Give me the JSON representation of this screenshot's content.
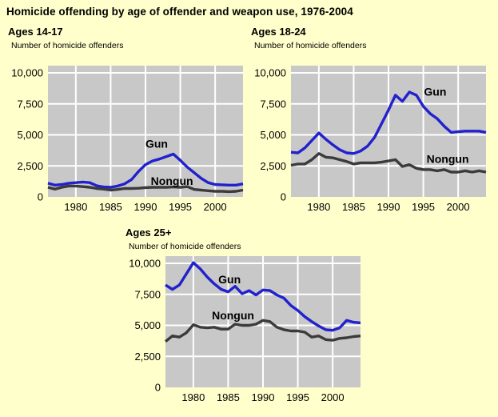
{
  "title": "Homicide offending by age of offender and weapon use, 1976-2004",
  "colors": {
    "background": "#FFFFCC",
    "plot_bg": "#C8C8C8",
    "grid": "#FFFFFF",
    "gun": "#2121CE",
    "nongun": "#3B3B3B",
    "text": "#000000"
  },
  "chart_data": [
    {
      "type": "line",
      "title": "Ages 14-17",
      "ylabel": "Number of homicide offenders",
      "xlim": [
        1976,
        2004
      ],
      "ylim": [
        0,
        10500
      ],
      "grid": true,
      "legend": "inline-labels",
      "xticks": [
        1980,
        1985,
        1990,
        1995,
        2000
      ],
      "yticks": [
        0,
        2500,
        5000,
        7500,
        10000
      ],
      "ytick_labels": [
        "0",
        "2,500",
        "5,000",
        "7,500",
        "10,000"
      ],
      "x": [
        1976,
        1977,
        1978,
        1979,
        1980,
        1981,
        1982,
        1983,
        1984,
        1985,
        1986,
        1987,
        1988,
        1989,
        1990,
        1991,
        1992,
        1993,
        1994,
        1995,
        1996,
        1997,
        1998,
        1999,
        2000,
        2001,
        2002,
        2003,
        2004
      ],
      "series": [
        {
          "name": "Gun",
          "color_key": "gun",
          "values": [
            1100,
            950,
            1000,
            1100,
            1150,
            1200,
            1150,
            900,
            800,
            775,
            875,
            1050,
            1400,
            2050,
            2600,
            2900,
            3050,
            3250,
            3450,
            2950,
            2400,
            1950,
            1500,
            1150,
            1000,
            975,
            950,
            950,
            1050
          ],
          "label_at": {
            "x": 1991.6,
            "y": 4300
          }
        },
        {
          "name": "Nongun",
          "color_key": "nongun",
          "values": [
            775,
            625,
            775,
            875,
            875,
            825,
            775,
            675,
            625,
            550,
            600,
            675,
            675,
            700,
            750,
            775,
            775,
            775,
            800,
            775,
            825,
            600,
            550,
            500,
            450,
            450,
            425,
            450,
            550
          ],
          "label_at": {
            "x": 1993.8,
            "y": 1300
          }
        }
      ]
    },
    {
      "type": "line",
      "title": "Ages 18-24",
      "ylabel": "Number of homicide offenders",
      "xlim": [
        1976,
        2004
      ],
      "ylim": [
        0,
        10500
      ],
      "grid": true,
      "legend": "inline-labels",
      "xticks": [
        1980,
        1985,
        1990,
        1995,
        2000
      ],
      "yticks": [
        0,
        2500,
        5000,
        7500,
        10000
      ],
      "ytick_labels": [
        "0",
        "2,500",
        "5,000",
        "7,500",
        "10,000"
      ],
      "x": [
        1976,
        1977,
        1978,
        1979,
        1980,
        1981,
        1982,
        1983,
        1984,
        1985,
        1986,
        1987,
        1988,
        1989,
        1990,
        1991,
        1992,
        1993,
        1994,
        1995,
        1996,
        1997,
        1998,
        1999,
        2000,
        2001,
        2002,
        2003,
        2004
      ],
      "series": [
        {
          "name": "Gun",
          "color_key": "gun",
          "values": [
            3600,
            3550,
            3950,
            4550,
            5150,
            4650,
            4200,
            3800,
            3550,
            3500,
            3700,
            4100,
            4800,
            5900,
            7000,
            8200,
            7700,
            8450,
            8200,
            7300,
            6700,
            6300,
            5700,
            5200,
            5250,
            5300,
            5300,
            5300,
            5200
          ],
          "label_at": {
            "x": 1996.7,
            "y": 8500
          }
        },
        {
          "name": "Nongun",
          "color_key": "nongun",
          "values": [
            2550,
            2650,
            2650,
            3000,
            3500,
            3200,
            3150,
            3000,
            2850,
            2650,
            2750,
            2750,
            2750,
            2800,
            2900,
            3000,
            2450,
            2600,
            2300,
            2200,
            2200,
            2100,
            2200,
            2000,
            2000,
            2100,
            2000,
            2100,
            2000
          ],
          "label_at": {
            "x": 1998.5,
            "y": 3050
          }
        }
      ]
    },
    {
      "type": "line",
      "title": "Ages 25+",
      "ylabel": "Number of homicide offenders",
      "xlim": [
        1976,
        2004
      ],
      "ylim": [
        0,
        10500
      ],
      "grid": true,
      "legend": "inline-labels",
      "xticks": [
        1980,
        1985,
        1990,
        1995,
        2000
      ],
      "yticks": [
        0,
        2500,
        5000,
        7500,
        10000
      ],
      "ytick_labels": [
        "0",
        "2,500",
        "5,000",
        "7,500",
        "10,000"
      ],
      "x": [
        1976,
        1977,
        1978,
        1979,
        1980,
        1981,
        1982,
        1983,
        1984,
        1985,
        1986,
        1987,
        1988,
        1989,
        1990,
        1991,
        1992,
        1993,
        1994,
        1995,
        1996,
        1997,
        1998,
        1999,
        2000,
        2001,
        2002,
        2003,
        2004
      ],
      "series": [
        {
          "name": "Gun",
          "color_key": "gun",
          "values": [
            8250,
            7900,
            8250,
            9150,
            10050,
            9550,
            8900,
            8350,
            7900,
            7700,
            8150,
            7550,
            7800,
            7450,
            7850,
            7800,
            7450,
            7200,
            6600,
            6200,
            5700,
            5300,
            4950,
            4650,
            4600,
            4800,
            5400,
            5250,
            5200
          ],
          "label_at": {
            "x": 1985.2,
            "y": 8700
          }
        },
        {
          "name": "Nongun",
          "color_key": "nongun",
          "values": [
            3700,
            4150,
            4050,
            4400,
            5050,
            4850,
            4800,
            4850,
            4700,
            4700,
            5100,
            5000,
            5000,
            5100,
            5400,
            5300,
            4850,
            4650,
            4550,
            4550,
            4450,
            4050,
            4150,
            3850,
            3800,
            3950,
            4000,
            4100,
            4150
          ],
          "label_at": {
            "x": 1985.7,
            "y": 5800
          }
        }
      ]
    }
  ]
}
